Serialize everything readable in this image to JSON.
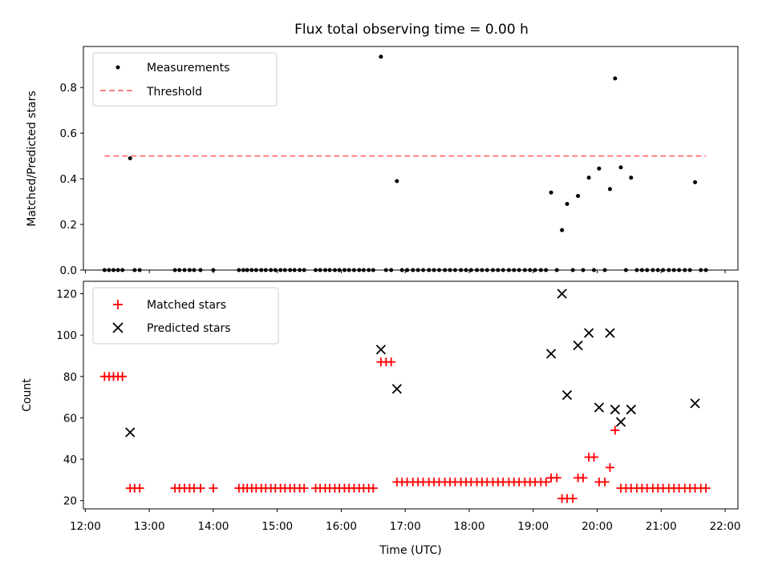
{
  "chart_data": [
    {
      "type": "scatter",
      "title": "Flux total observing time = 0.00 h",
      "ylabel": "Matched/Predicted stars",
      "xlabel": "",
      "ylim": [
        0,
        0.98
      ],
      "xlim": [
        11.97,
        22.2
      ],
      "yticks": [
        0.0,
        0.2,
        0.4,
        0.6,
        0.8
      ],
      "ytick_labels": [
        "0.0",
        "0.2",
        "0.4",
        "0.6",
        "0.8"
      ],
      "legend_position": "upper-left",
      "grid": false,
      "series": [
        {
          "name": "Measurements",
          "marker": "dot",
          "color": "#000000",
          "x": [
            12.3,
            12.37,
            12.44,
            12.51,
            12.58,
            12.7,
            12.77,
            12.85,
            13.4,
            13.47,
            13.55,
            13.63,
            13.7,
            13.8,
            14.0,
            14.4,
            14.47,
            14.53,
            14.6,
            14.67,
            14.75,
            14.82,
            14.9,
            14.97,
            15.05,
            15.12,
            15.2,
            15.27,
            15.35,
            15.42,
            15.6,
            15.67,
            15.75,
            15.82,
            15.9,
            15.97,
            16.05,
            16.12,
            16.2,
            16.28,
            16.35,
            16.43,
            16.5,
            16.62,
            16.7,
            16.78,
            16.87,
            16.95,
            17.03,
            17.12,
            17.2,
            17.28,
            17.37,
            17.45,
            17.53,
            17.62,
            17.7,
            17.78,
            17.87,
            17.95,
            18.03,
            18.12,
            18.2,
            18.28,
            18.37,
            18.45,
            18.53,
            18.62,
            18.7,
            18.78,
            18.87,
            18.95,
            19.03,
            19.12,
            19.2,
            19.28,
            19.37,
            19.45,
            19.53,
            19.62,
            19.7,
            19.78,
            19.87,
            19.95,
            20.03,
            20.12,
            20.2,
            20.28,
            20.37,
            20.45,
            20.53,
            20.62,
            20.7,
            20.78,
            20.87,
            20.95,
            21.03,
            21.12,
            21.2,
            21.28,
            21.37,
            21.45,
            21.53,
            21.62,
            21.7
          ],
          "y": [
            0,
            0,
            0,
            0,
            0,
            0.49,
            0,
            0,
            0,
            0,
            0,
            0,
            0,
            0,
            0,
            0,
            0,
            0,
            0,
            0,
            0,
            0,
            0,
            0,
            0,
            0,
            0,
            0,
            0,
            0,
            0,
            0,
            0,
            0,
            0,
            0,
            0,
            0,
            0,
            0,
            0,
            0,
            0,
            0.935,
            0,
            0,
            0.39,
            0,
            0,
            0,
            0,
            0,
            0,
            0,
            0,
            0,
            0,
            0,
            0,
            0,
            0,
            0,
            0,
            0,
            0,
            0,
            0,
            0,
            0,
            0,
            0,
            0,
            0,
            0,
            0,
            0.34,
            0,
            0.175,
            0.29,
            0,
            0.325,
            0,
            0.405,
            0,
            0.445,
            0,
            0.355,
            0.84,
            0.45,
            0,
            0.405,
            0,
            0,
            0,
            0,
            0,
            0,
            0,
            0,
            0,
            0,
            0,
            0.385,
            0,
            0
          ]
        },
        {
          "name": "Threshold",
          "style": "dashed",
          "color": "#ff7f7f",
          "x": [
            12.3,
            21.7
          ],
          "y": [
            0.5,
            0.5
          ]
        }
      ]
    },
    {
      "type": "scatter",
      "title": "",
      "ylabel": "Count",
      "xlabel": "Time (UTC)",
      "ylim": [
        16,
        126
      ],
      "xlim": [
        11.97,
        22.2
      ],
      "yticks": [
        20,
        40,
        60,
        80,
        100,
        120
      ],
      "ytick_labels": [
        "20",
        "40",
        "60",
        "80",
        "100",
        "120"
      ],
      "xticks": [
        12,
        13,
        14,
        15,
        16,
        17,
        18,
        19,
        20,
        21,
        22
      ],
      "xtick_labels": [
        "12:00",
        "13:00",
        "14:00",
        "15:00",
        "16:00",
        "17:00",
        "18:00",
        "19:00",
        "20:00",
        "21:00",
        "22:00"
      ],
      "legend_position": "upper-left",
      "grid": false,
      "series": [
        {
          "name": "Matched stars",
          "marker": "plus",
          "color": "#ff0000",
          "x": [
            12.3,
            12.37,
            12.44,
            12.51,
            12.58,
            12.7,
            12.77,
            12.85,
            13.4,
            13.47,
            13.55,
            13.63,
            13.7,
            13.8,
            14.0,
            14.4,
            14.47,
            14.53,
            14.6,
            14.67,
            14.75,
            14.82,
            14.9,
            14.97,
            15.05,
            15.12,
            15.2,
            15.27,
            15.35,
            15.42,
            15.6,
            15.67,
            15.75,
            15.82,
            15.9,
            15.97,
            16.05,
            16.12,
            16.2,
            16.28,
            16.35,
            16.43,
            16.5,
            16.62,
            16.7,
            16.78,
            16.87,
            16.95,
            17.03,
            17.12,
            17.2,
            17.28,
            17.37,
            17.45,
            17.53,
            17.62,
            17.7,
            17.78,
            17.87,
            17.95,
            18.03,
            18.12,
            18.2,
            18.28,
            18.37,
            18.45,
            18.53,
            18.62,
            18.7,
            18.78,
            18.87,
            18.95,
            19.03,
            19.12,
            19.2,
            19.28,
            19.37,
            19.45,
            19.53,
            19.62,
            19.7,
            19.78,
            19.87,
            19.95,
            20.03,
            20.12,
            20.2,
            20.28,
            20.37,
            20.45,
            20.53,
            20.62,
            20.7,
            20.78,
            20.87,
            20.95,
            21.03,
            21.12,
            21.2,
            21.28,
            21.37,
            21.45,
            21.53,
            21.62,
            21.7
          ],
          "y": [
            80,
            80,
            80,
            80,
            80,
            26,
            26,
            26,
            26,
            26,
            26,
            26,
            26,
            26,
            26,
            26,
            26,
            26,
            26,
            26,
            26,
            26,
            26,
            26,
            26,
            26,
            26,
            26,
            26,
            26,
            26,
            26,
            26,
            26,
            26,
            26,
            26,
            26,
            26,
            26,
            26,
            26,
            26,
            87,
            87,
            87,
            29,
            29,
            29,
            29,
            29,
            29,
            29,
            29,
            29,
            29,
            29,
            29,
            29,
            29,
            29,
            29,
            29,
            29,
            29,
            29,
            29,
            29,
            29,
            29,
            29,
            29,
            29,
            29,
            29,
            31,
            31,
            21,
            21,
            21,
            31,
            31,
            41,
            41,
            29,
            29,
            36,
            54,
            26,
            26,
            26,
            26,
            26,
            26,
            26,
            26,
            26,
            26,
            26,
            26,
            26,
            26,
            26,
            26,
            26
          ]
        },
        {
          "name": "Predicted stars",
          "marker": "x",
          "color": "#000000",
          "x": [
            12.7,
            16.62,
            16.87,
            19.28,
            19.45,
            19.53,
            19.7,
            19.87,
            20.03,
            20.2,
            20.28,
            20.37,
            20.53,
            21.53
          ],
          "y": [
            53,
            93,
            74,
            91,
            120,
            71,
            95,
            101,
            65,
            101,
            64,
            58,
            64,
            67
          ]
        }
      ]
    }
  ]
}
